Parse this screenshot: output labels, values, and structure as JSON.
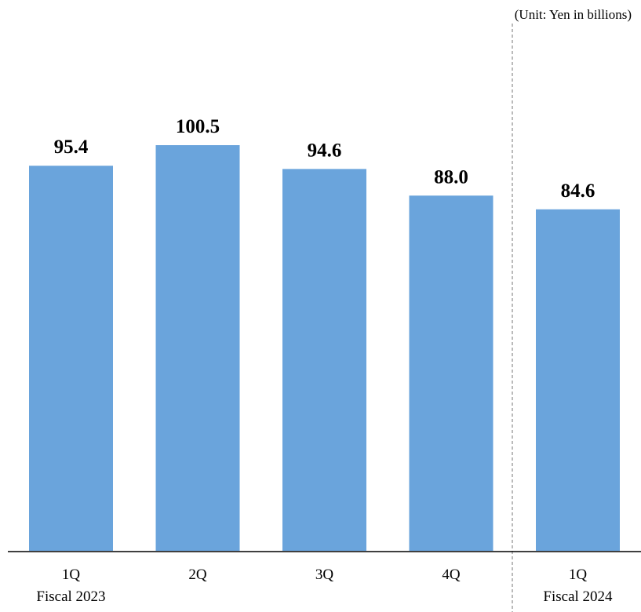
{
  "chart_data": {
    "type": "bar",
    "unit_note": "(Unit: Yen in billions)",
    "categories": [
      {
        "quarter": "1Q",
        "period": "Fiscal 2023"
      },
      {
        "quarter": "2Q",
        "period": ""
      },
      {
        "quarter": "3Q",
        "period": ""
      },
      {
        "quarter": "4Q",
        "period": ""
      },
      {
        "quarter": "1Q",
        "period": "Fiscal 2024"
      }
    ],
    "values": [
      95.4,
      100.5,
      94.6,
      88.0,
      84.6
    ],
    "value_labels": [
      "95.4",
      "100.5",
      "94.6",
      "88.0",
      "84.6"
    ],
    "ylim": [
      0,
      100.5
    ],
    "bar_color": "#6aa4dc",
    "divider": "dashed line between 4Q Fiscal 2023 and 1Q Fiscal 2024",
    "grid": false,
    "legend": "none"
  }
}
